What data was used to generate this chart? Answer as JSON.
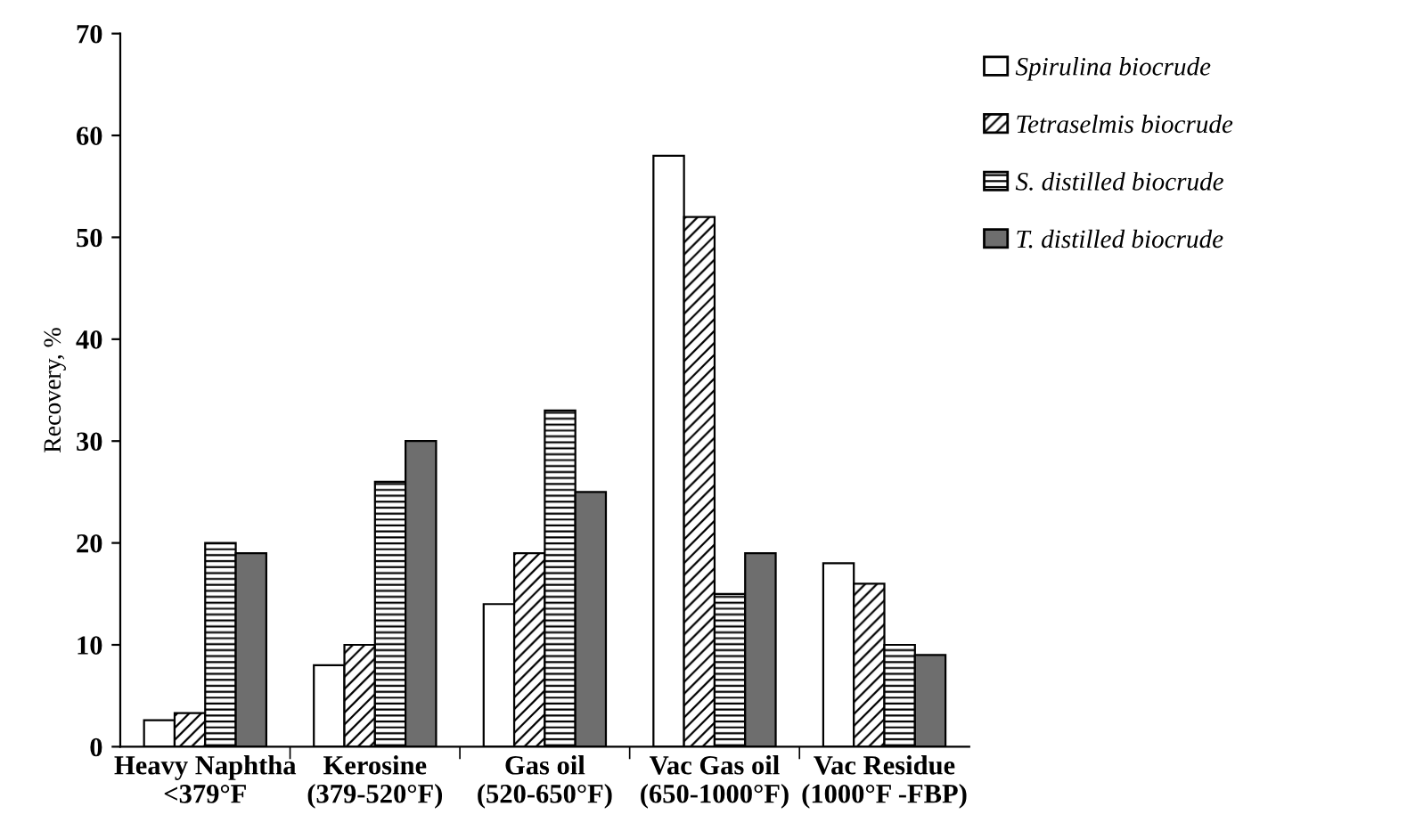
{
  "chart_data": {
    "type": "bar",
    "ylabel": "Recovery, %",
    "categories": [
      "Heavy Naphtha\n<379°F",
      "Kerosine\n(379-520°F)",
      "Gas oil\n(520-650°F)",
      "Vac Gas oil\n(650-1000°F)",
      "Vac Residue\n(1000°F -FBP)"
    ],
    "series": [
      {
        "name": "Spirulina biocrude",
        "color": "#ffffff",
        "values": [
          2.6,
          8,
          14,
          58,
          18
        ]
      },
      {
        "name": "Tetraselmis biocrude",
        "color": "#000000",
        "values": [
          3.3,
          10,
          19,
          52,
          16
        ]
      },
      {
        "name": "S. distilled biocrude",
        "color": "#000000",
        "values": [
          20,
          26,
          33,
          15,
          10
        ]
      },
      {
        "name": "T. distilled biocrude",
        "color": "#6e6e6e",
        "values": [
          19,
          30,
          25,
          19,
          9
        ]
      }
    ],
    "ylim": [
      0,
      70
    ],
    "yticks": [
      0,
      10,
      20,
      30,
      40,
      50,
      60,
      70
    ],
    "grid": false,
    "legend": "top right"
  }
}
